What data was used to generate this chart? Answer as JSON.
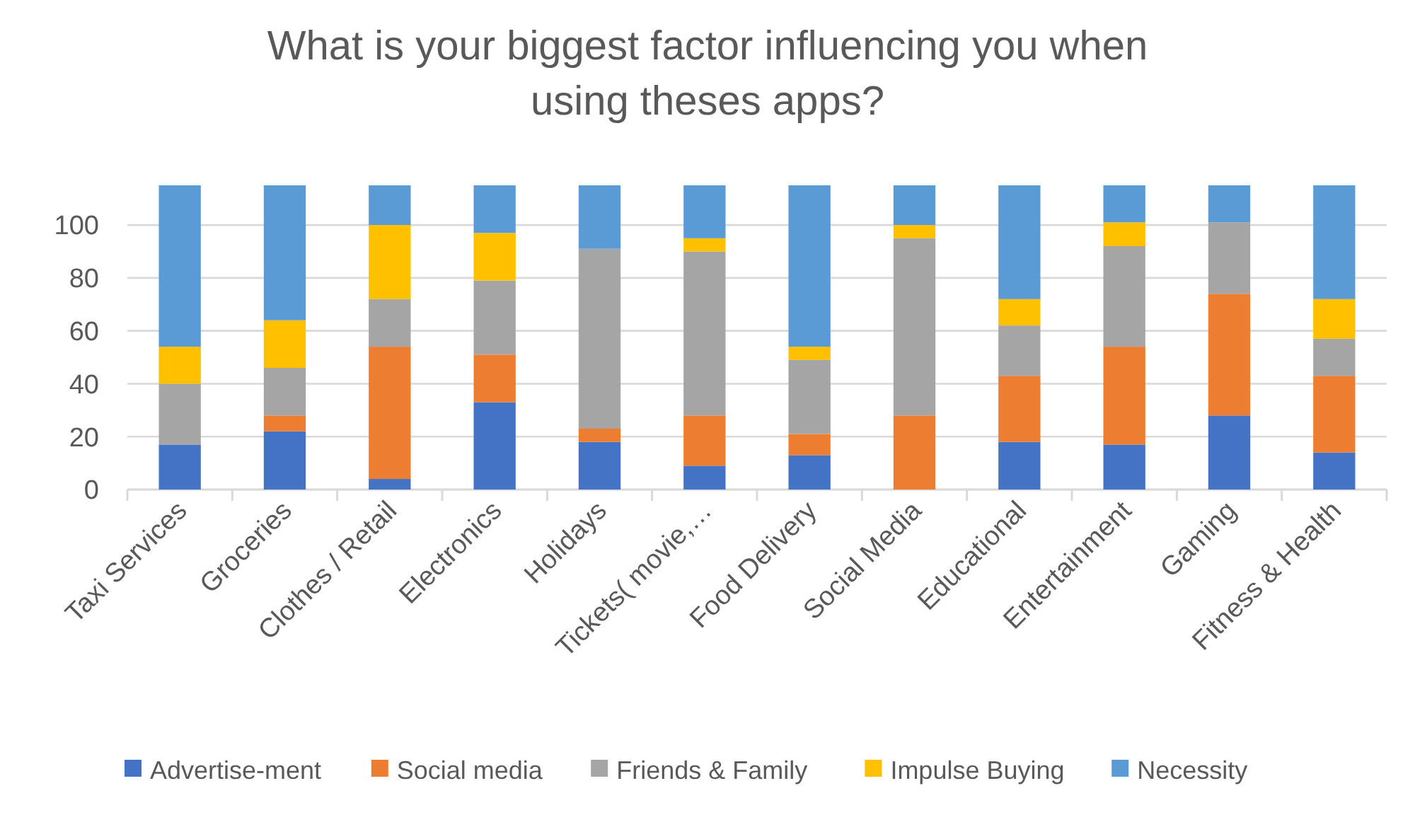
{
  "chart_data": {
    "type": "bar",
    "stacked": true,
    "title": "What is your biggest factor influencing you when using theses apps?",
    "categories": [
      "Taxi Services",
      "Groceries",
      "Clothes / Retail",
      "Electronics",
      "Holidays",
      "Tickets( movie,…",
      "Food Delivery",
      "Social Media",
      "Educational",
      "Entertainment",
      "Gaming",
      "Fitness & Health"
    ],
    "series": [
      {
        "name": "Advertise-ment",
        "color": "#4472c4",
        "values": [
          17,
          22,
          4,
          33,
          18,
          9,
          13,
          0,
          18,
          17,
          28,
          14
        ]
      },
      {
        "name": "Social media",
        "color": "#ed7d31",
        "values": [
          0,
          6,
          50,
          18,
          5,
          19,
          8,
          28,
          25,
          37,
          46,
          29
        ]
      },
      {
        "name": "Friends & Family",
        "color": "#a5a5a5",
        "values": [
          23,
          18,
          18,
          28,
          68,
          62,
          28,
          67,
          19,
          38,
          27,
          14
        ]
      },
      {
        "name": "Impulse Buying",
        "color": "#ffc000",
        "values": [
          14,
          18,
          28,
          18,
          0,
          5,
          5,
          5,
          10,
          9,
          0,
          15
        ]
      },
      {
        "name": "Necessity",
        "color": "#5b9bd5",
        "values": [
          61,
          51,
          15,
          18,
          24,
          20,
          61,
          15,
          43,
          14,
          14,
          43
        ]
      }
    ],
    "ylim": [
      0,
      115
    ],
    "yticks": [
      0,
      20,
      40,
      60,
      80,
      100
    ],
    "grid": "y",
    "legend": "bottom"
  }
}
